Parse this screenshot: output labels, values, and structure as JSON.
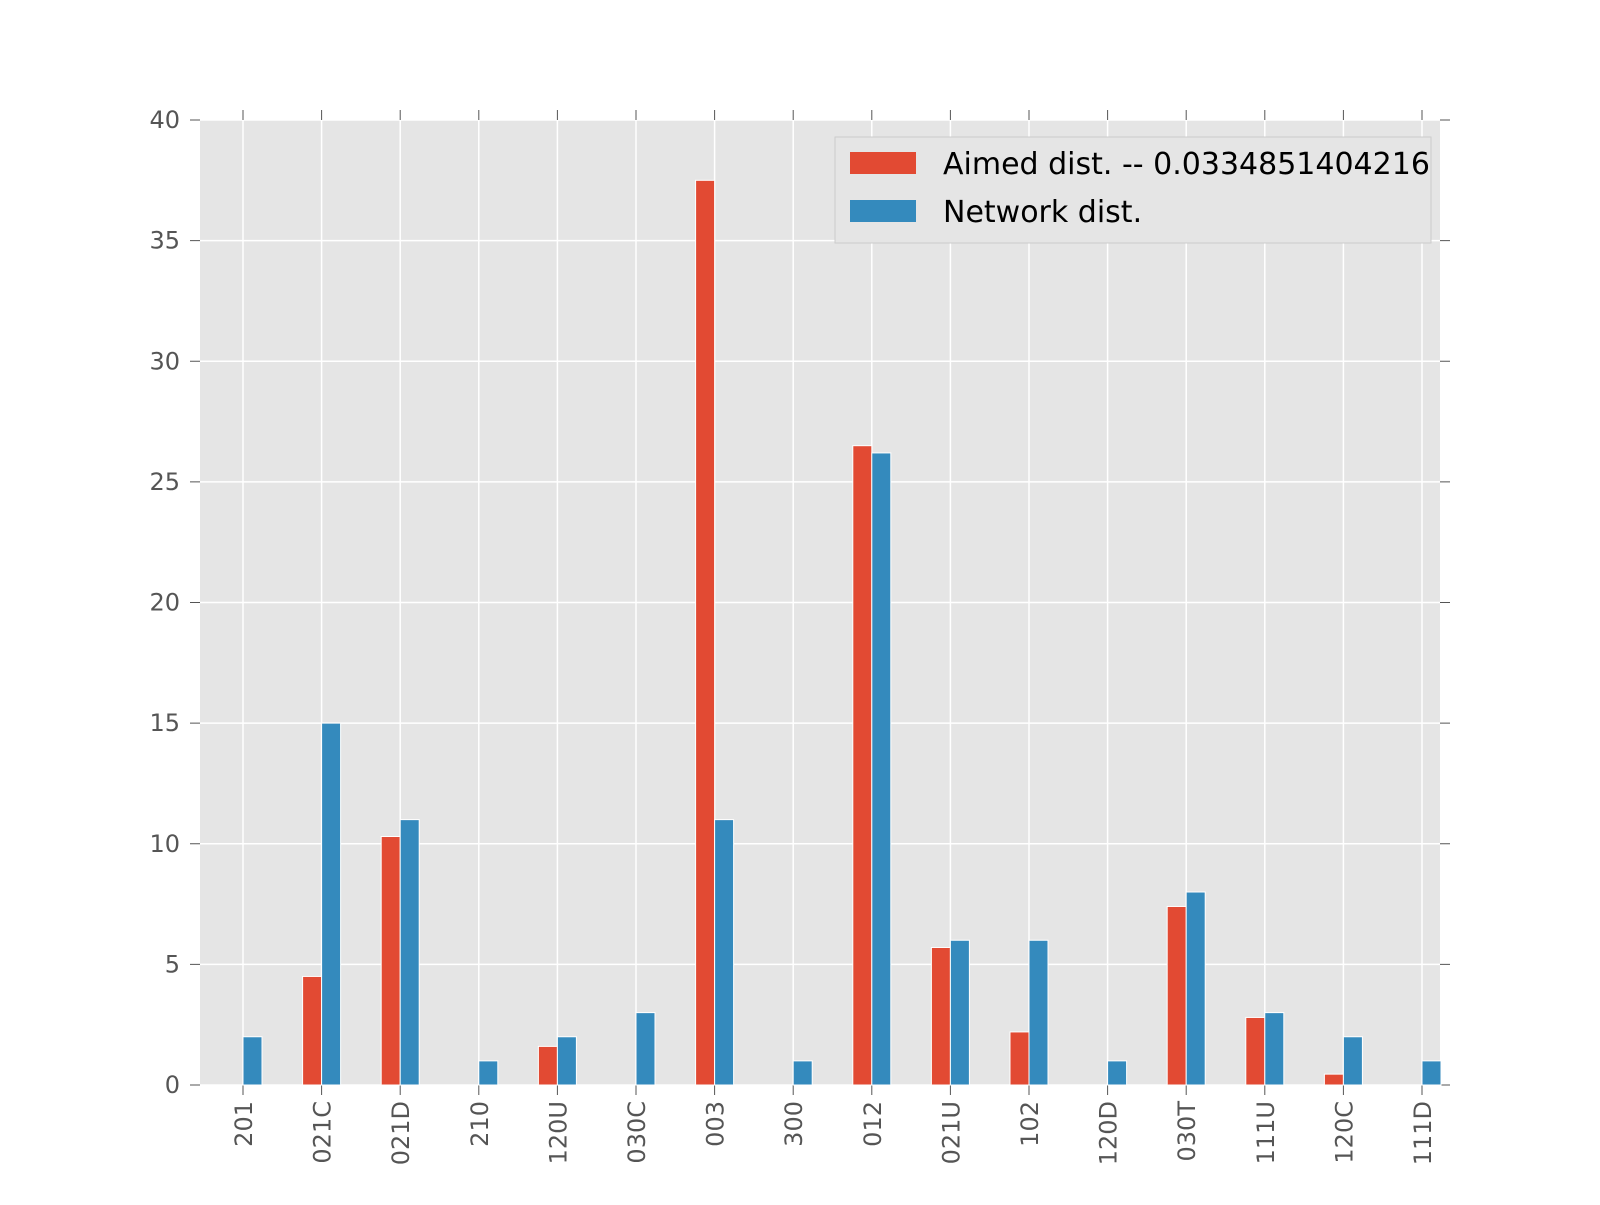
{
  "chart_data": {
    "type": "bar",
    "categories": [
      "201",
      "021C",
      "021D",
      "210",
      "120U",
      "030C",
      "003",
      "300",
      "012",
      "021U",
      "102",
      "120D",
      "030T",
      "111U",
      "120C",
      "111D"
    ],
    "series": [
      {
        "name": "Aimed dist. -- 0.0334851404216",
        "color": "#E24A33",
        "values": [
          0,
          4.5,
          10.3,
          0,
          1.6,
          0,
          37.5,
          0,
          26.5,
          5.7,
          2.2,
          0,
          7.4,
          2.8,
          0.45,
          0
        ]
      },
      {
        "name": "Network dist.",
        "color": "#348ABD",
        "values": [
          2,
          15,
          11,
          1,
          2,
          3,
          11,
          1,
          26.2,
          6,
          6,
          1,
          8,
          3,
          2,
          1
        ]
      }
    ],
    "yticks": [
      "0",
      "5",
      "10",
      "15",
      "20",
      "25",
      "30",
      "35",
      "40"
    ],
    "ylim": [
      0,
      40
    ],
    "grid": true,
    "legend_position": "top-right",
    "background_color": "#E5E5E5",
    "grid_color": "#FFFFFF"
  }
}
